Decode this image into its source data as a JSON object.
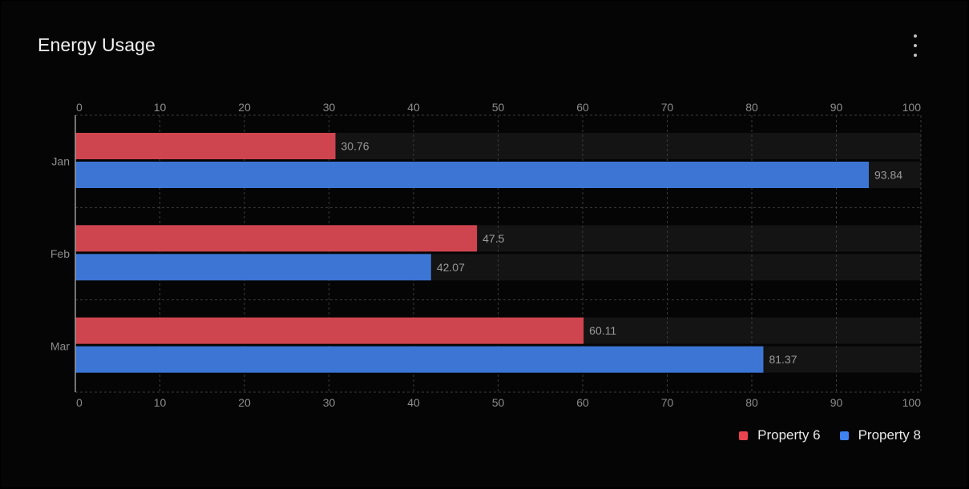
{
  "header": {
    "title": "Energy Usage",
    "menu_icon": "more-vertical-icon"
  },
  "colors": {
    "background": "#050505",
    "track": "#141414",
    "grid": "#3a3a3a",
    "axis_text": "#8c8c8c",
    "series": [
      "#cf454f",
      "#3c75d4"
    ]
  },
  "chart_data": {
    "type": "bar",
    "orientation": "horizontal",
    "categories": [
      "Jan",
      "Feb",
      "Mar"
    ],
    "series": [
      {
        "name": "Property 6",
        "values": [
          30.76,
          47.5,
          60.11
        ]
      },
      {
        "name": "Property 8",
        "values": [
          93.84,
          42.07,
          81.37
        ]
      }
    ],
    "xlim": [
      0,
      100
    ],
    "x_ticks": [
      "0",
      "10",
      "20",
      "30",
      "40",
      "50",
      "60",
      "70",
      "80",
      "90",
      "100"
    ],
    "grid": true,
    "data_labels": true,
    "legend_position": "bottom-right"
  },
  "legend": {
    "items": [
      {
        "label": "Property 6",
        "color": "#e8434f"
      },
      {
        "label": "Property 8",
        "color": "#3f82f0"
      }
    ]
  }
}
